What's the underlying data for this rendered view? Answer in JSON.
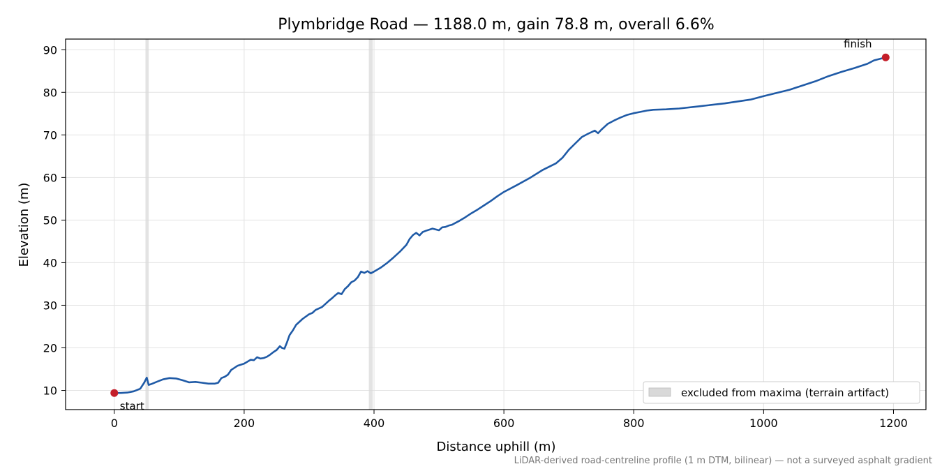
{
  "chart_data": {
    "type": "line",
    "title": "Plymbridge Road — 1188.0 m, gain 78.8 m, overall 6.6%",
    "xlabel": "Distance uphill (m)",
    "ylabel": "Elevation (m)",
    "xlim": [
      -75,
      1250
    ],
    "ylim": [
      5.5,
      92.5
    ],
    "xticks": [
      0,
      200,
      400,
      600,
      800,
      1000,
      1200
    ],
    "yticks": [
      10,
      20,
      30,
      40,
      50,
      60,
      70,
      80,
      90
    ],
    "grid": true,
    "legend_position": "bottom-right",
    "line_color": "#1f5aa6",
    "marker_color": "#c41e2a",
    "band_color": "#d9d9d9",
    "series": [
      {
        "x": [
          0,
          10,
          20,
          30,
          40,
          46,
          50,
          53,
          57,
          65,
          75,
          85,
          95,
          105,
          115,
          125,
          135,
          145,
          155,
          160,
          165,
          170,
          175,
          180,
          185,
          190,
          200,
          210,
          215,
          220,
          225,
          230,
          235,
          240,
          245,
          250,
          255,
          258,
          262,
          266,
          270,
          275,
          280,
          290,
          300,
          305,
          310,
          320,
          330,
          335,
          340,
          345,
          350,
          355,
          360,
          365,
          370,
          375,
          380,
          385,
          390,
          395,
          400,
          410,
          420,
          430,
          440,
          450,
          455,
          460,
          465,
          470,
          475,
          480,
          490,
          500,
          505,
          510,
          515,
          520,
          530,
          540,
          550,
          560,
          570,
          580,
          590,
          600,
          620,
          640,
          660,
          680,
          690,
          700,
          710,
          720,
          730,
          740,
          745,
          750,
          755,
          760,
          770,
          780,
          790,
          800,
          810,
          820,
          830,
          850,
          870,
          900,
          940,
          980,
          1000,
          1040,
          1080,
          1100,
          1120,
          1140,
          1160,
          1170,
          1188
        ],
        "y": [
          9.4,
          9.4,
          9.5,
          9.8,
          10.4,
          11.8,
          13.0,
          11.3,
          11.5,
          12.0,
          12.6,
          12.9,
          12.8,
          12.4,
          11.9,
          12.0,
          11.8,
          11.6,
          11.6,
          11.8,
          12.9,
          13.2,
          13.7,
          14.8,
          15.3,
          15.8,
          16.3,
          17.2,
          17.1,
          17.8,
          17.5,
          17.6,
          17.9,
          18.4,
          19.0,
          19.5,
          20.4,
          20.0,
          19.8,
          21.3,
          23.0,
          24.1,
          25.4,
          26.8,
          27.9,
          28.2,
          28.9,
          29.6,
          31.0,
          31.6,
          32.3,
          32.9,
          32.6,
          33.8,
          34.5,
          35.4,
          35.8,
          36.6,
          37.9,
          37.6,
          38.0,
          37.5,
          37.9,
          38.8,
          39.9,
          41.2,
          42.6,
          44.2,
          45.6,
          46.5,
          47.0,
          46.4,
          47.2,
          47.5,
          48.0,
          47.6,
          48.3,
          48.4,
          48.7,
          48.9,
          49.7,
          50.6,
          51.6,
          52.5,
          53.5,
          54.5,
          55.6,
          56.6,
          58.2,
          59.9,
          61.8,
          63.3,
          64.6,
          66.5,
          68.0,
          69.5,
          70.3,
          71.0,
          70.4,
          71.2,
          71.9,
          72.6,
          73.4,
          74.1,
          74.7,
          75.1,
          75.4,
          75.7,
          75.9,
          76.0,
          76.2,
          76.7,
          77.4,
          78.3,
          79.1,
          80.6,
          82.6,
          83.8,
          84.8,
          85.7,
          86.7,
          87.5,
          88.2
        ]
      }
    ],
    "excluded_bands": [
      [
        48,
        53
      ],
      [
        392,
        398
      ]
    ],
    "legend_entries": [
      "excluded from maxima (terrain artifact)"
    ],
    "annotations": [
      {
        "text": "start",
        "x": 0,
        "y": 9.4
      },
      {
        "text": "finish",
        "x": 1188,
        "y": 88.2
      }
    ],
    "footnote": "LiDAR-derived road-centreline profile (1 m DTM, bilinear) — not a surveyed asphalt gradient"
  }
}
